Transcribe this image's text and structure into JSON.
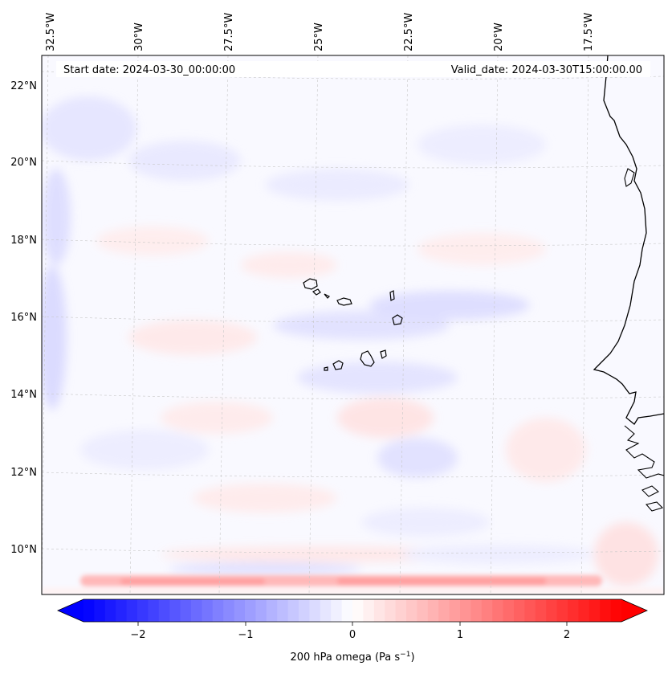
{
  "map": {
    "start_date": "Start date: 2024-03-30_00:00:00",
    "valid_date": "Valid_date: 2024-03-30T15:00:00.00",
    "lon_labels": [
      "32.5°W",
      "30°W",
      "27.5°W",
      "25°W",
      "22.5°W",
      "20°W",
      "17.5°W"
    ],
    "lat_labels": [
      "22°N",
      "20°N",
      "18°N",
      "16°N",
      "14°N",
      "12°N",
      "10°N"
    ],
    "extent": {
      "lon_min": -32.7,
      "lon_max": -15.5,
      "lat_min": 8.9,
      "lat_max": 22.7
    },
    "variable": "200 hPa omega",
    "units": "Pa s⁻¹",
    "colormap": "bwr"
  },
  "colorbar": {
    "tick_labels": [
      "−2",
      "−1",
      "0",
      "1",
      "2"
    ],
    "range": [
      -2.7,
      2.7
    ],
    "label_main": "200 hPa omega (Pa s",
    "label_exp": "−1",
    "label_close": ")",
    "colors": {
      "negative": "#0000ff",
      "zero": "#ffffff",
      "positive": "#ff0000"
    }
  }
}
